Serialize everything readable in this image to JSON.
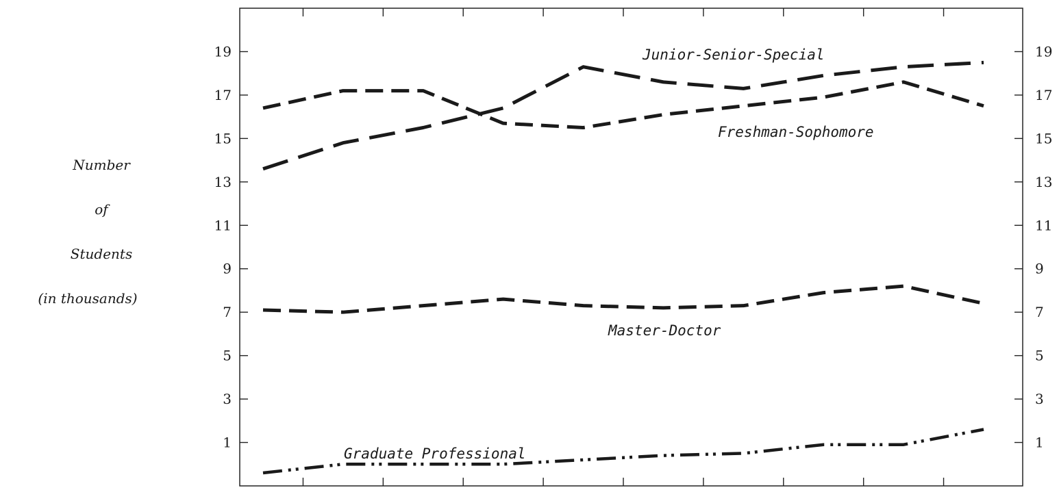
{
  "chart_data": {
    "type": "line",
    "title": "",
    "ylabel_lines": [
      "Number",
      "of",
      "Students",
      "(in thousands)"
    ],
    "xlabel": "",
    "ylim": [
      -1,
      21
    ],
    "yticks": [
      1,
      3,
      5,
      7,
      9,
      11,
      13,
      15,
      17,
      19
    ],
    "yticks_right": [
      1,
      3,
      5,
      7,
      9,
      11,
      13,
      15,
      17,
      19
    ],
    "x_count": 10,
    "grid": false,
    "series": [
      {
        "name": "Junior-Senior-Special",
        "style": "long-dash",
        "values": [
          13.6,
          14.8,
          15.5,
          16.4,
          18.3,
          17.6,
          17.3,
          17.9,
          18.3,
          18.5
        ]
      },
      {
        "name": "Freshman-Sophomore",
        "style": "dash",
        "values": [
          16.4,
          17.2,
          17.2,
          15.7,
          15.5,
          16.1,
          16.5,
          16.9,
          17.6,
          16.5
        ]
      },
      {
        "name": "Master-Doctor",
        "style": "dash",
        "values": [
          7.1,
          7.0,
          7.3,
          7.6,
          7.3,
          7.2,
          7.3,
          7.9,
          8.2,
          7.4
        ]
      },
      {
        "name": "Graduate Professional",
        "style": "dash-dot-dot",
        "values": [
          -0.4,
          0.0,
          0.0,
          0.0,
          0.2,
          0.4,
          0.5,
          0.9,
          0.9,
          1.6
        ]
      }
    ],
    "annotations": [
      "Junior-Senior-Special",
      "Freshman-Sophomore",
      "Master-Doctor",
      "Graduate Professional"
    ]
  }
}
